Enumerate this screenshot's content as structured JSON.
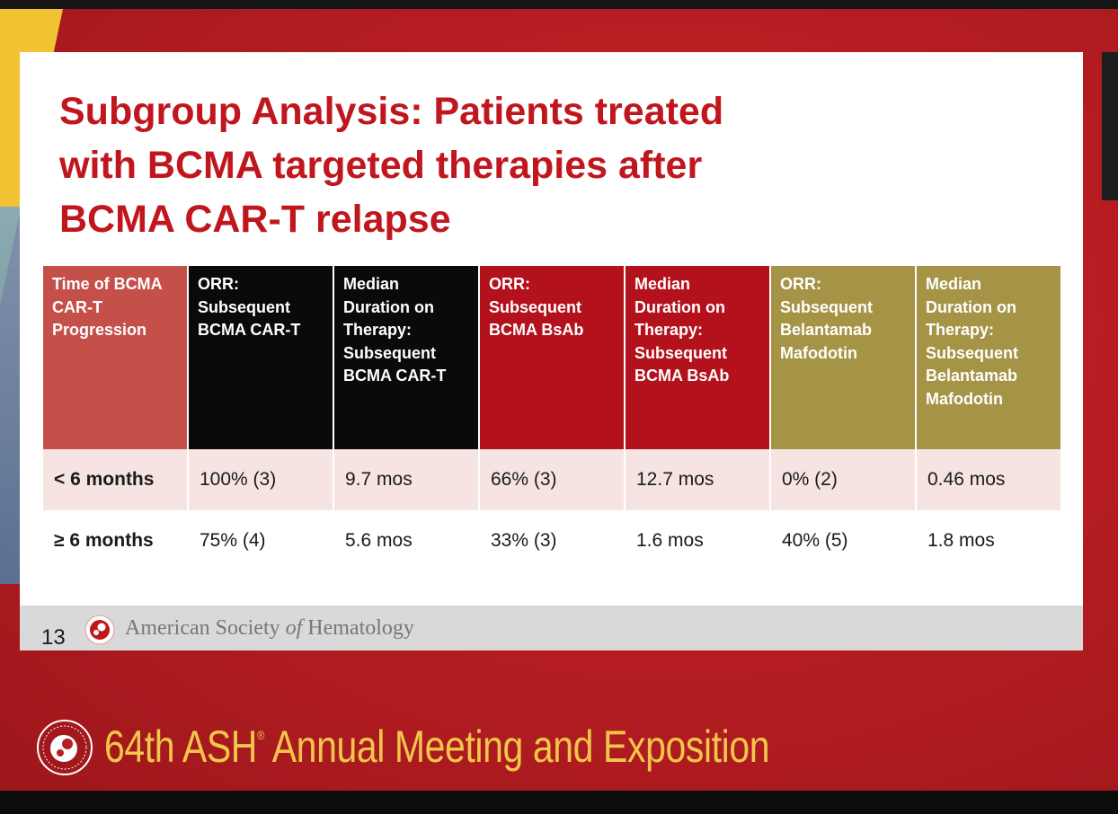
{
  "slide": {
    "title_lines": [
      "Subgroup Analysis: Patients treated",
      "with BCMA targeted therapies after",
      "BCMA CAR-T relapse"
    ],
    "page_number": "13",
    "society_name_pre": "American Society ",
    "society_name_of": "of",
    "society_name_post": " Hematology"
  },
  "table": {
    "headers": [
      "Time of BCMA CAR-T Progression",
      "ORR: Subsequent BCMA CAR-T",
      "Median Duration on Therapy: Subsequent BCMA CAR-T",
      "ORR: Subsequent BCMA BsAb",
      "Median Duration on Therapy: Subsequent BCMA BsAb",
      "ORR: Subsequent Belantamab Mafodotin",
      "Median Duration on Therapy: Subsequent Belantamab Mafodotin"
    ],
    "rows": [
      [
        "< 6 months",
        "100% (3)",
        "9.7 mos",
        "66% (3)",
        "12.7 mos",
        "0% (2)",
        "0.46 mos"
      ],
      [
        "≥ 6 months",
        "75% (4)",
        "5.6 mos",
        "33% (3)",
        "1.6 mos",
        "40% (5)",
        "1.8 mos"
      ]
    ]
  },
  "banner": {
    "meeting_pre": "64th ASH",
    "meeting_mark": "®",
    "meeting_post": " Annual Meeting and Exposition"
  },
  "colors": {
    "title_red": "#c0171f",
    "header_gray_red": "#c5504a",
    "header_black": "#0a0a0a",
    "header_red": "#b3121c",
    "header_olive": "#a59446",
    "banner_gold": "#f2c64a"
  }
}
